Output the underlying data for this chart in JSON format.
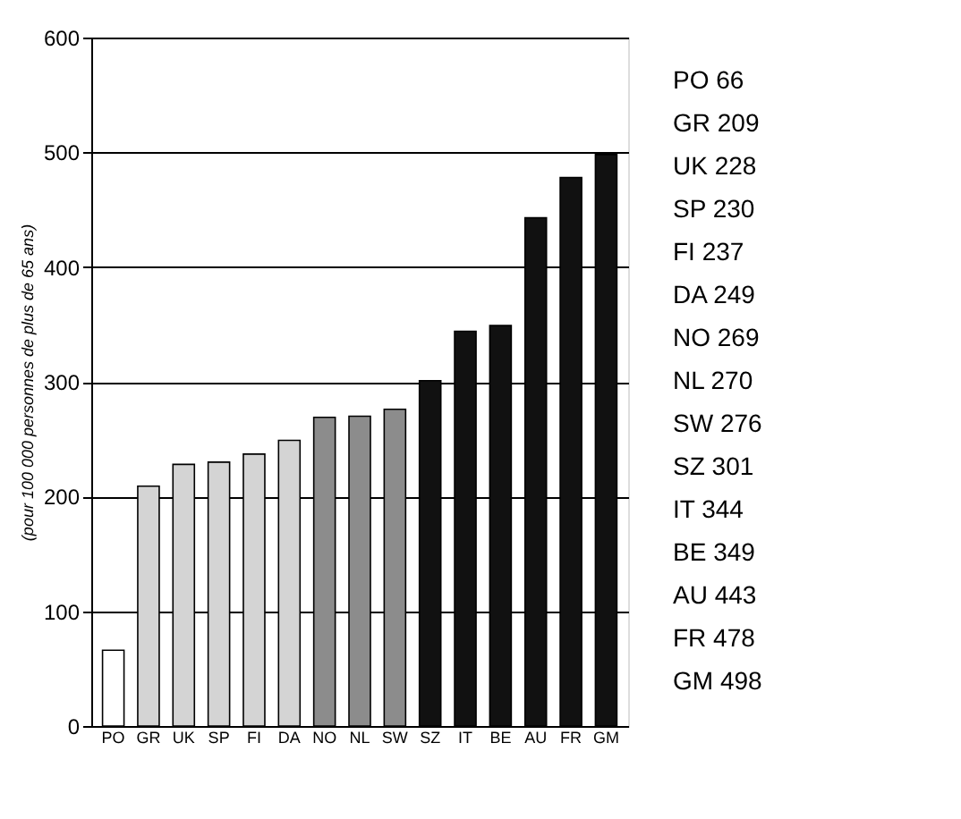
{
  "chart_data": {
    "type": "bar",
    "ylabel": "(pour 100 000 personnes de plus de 65 ans)",
    "categories": [
      "PO",
      "GR",
      "UK",
      "SP",
      "FI",
      "DA",
      "NO",
      "NL",
      "SW",
      "SZ",
      "IT",
      "BE",
      "AU",
      "FR",
      "GM"
    ],
    "values": [
      66,
      209,
      228,
      230,
      237,
      249,
      269,
      270,
      276,
      301,
      344,
      349,
      443,
      478,
      498
    ],
    "colors": [
      "#ffffff",
      "#d4d4d4",
      "#d4d4d4",
      "#d4d4d4",
      "#d4d4d4",
      "#d4d4d4",
      "#8c8c8c",
      "#8c8c8c",
      "#8c8c8c",
      "#111111",
      "#111111",
      "#111111",
      "#111111",
      "#111111",
      "#111111"
    ],
    "ylim": [
      0,
      600
    ],
    "yticks": [
      0,
      100,
      200,
      300,
      400,
      500,
      600
    ],
    "grid": "y",
    "annotations": [
      "PO 66",
      "GR 209",
      "UK 228",
      "SP 230",
      "FI 237",
      "DA 249",
      "NO 269",
      "NL 270",
      "SW 276",
      "SZ 301",
      "IT 344",
      "BE 349",
      "AU 443",
      "FR 478",
      "GM 498"
    ]
  }
}
